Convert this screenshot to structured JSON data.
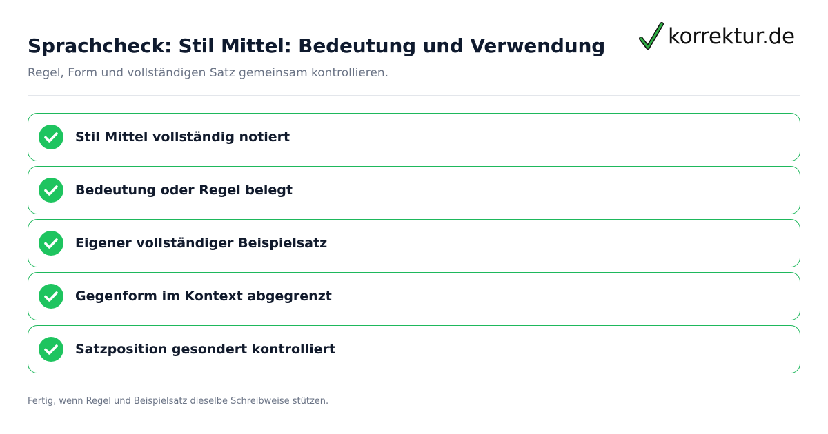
{
  "header": {
    "title": "Sprachcheck: Stil Mittel: Bedeutung und Verwendung",
    "subtitle": "Regel, Form und vollständigen Satz gemeinsam kontrollieren."
  },
  "brand": {
    "logo_text": "korrektur.de",
    "logo_icon": "checkmark-icon",
    "logo_check_color": "#1e9c3a"
  },
  "checklist": {
    "items": [
      {
        "label": "Stil Mittel vollständig notiert",
        "checked": true
      },
      {
        "label": "Bedeutung oder Regel belegt",
        "checked": true
      },
      {
        "label": "Eigener vollständiger Beispielsatz",
        "checked": true
      },
      {
        "label": "Gegenform im Kontext abgegrenzt",
        "checked": true
      },
      {
        "label": "Satzposition gesondert kontrolliert",
        "checked": true
      }
    ],
    "check_icon": "check-circle-icon",
    "accent_color": "#1eb85c",
    "border_color": "#1eb85c"
  },
  "footer": {
    "note": "Fertig, wenn Regel und Beispielsatz dieselbe Schreibweise stützen."
  }
}
